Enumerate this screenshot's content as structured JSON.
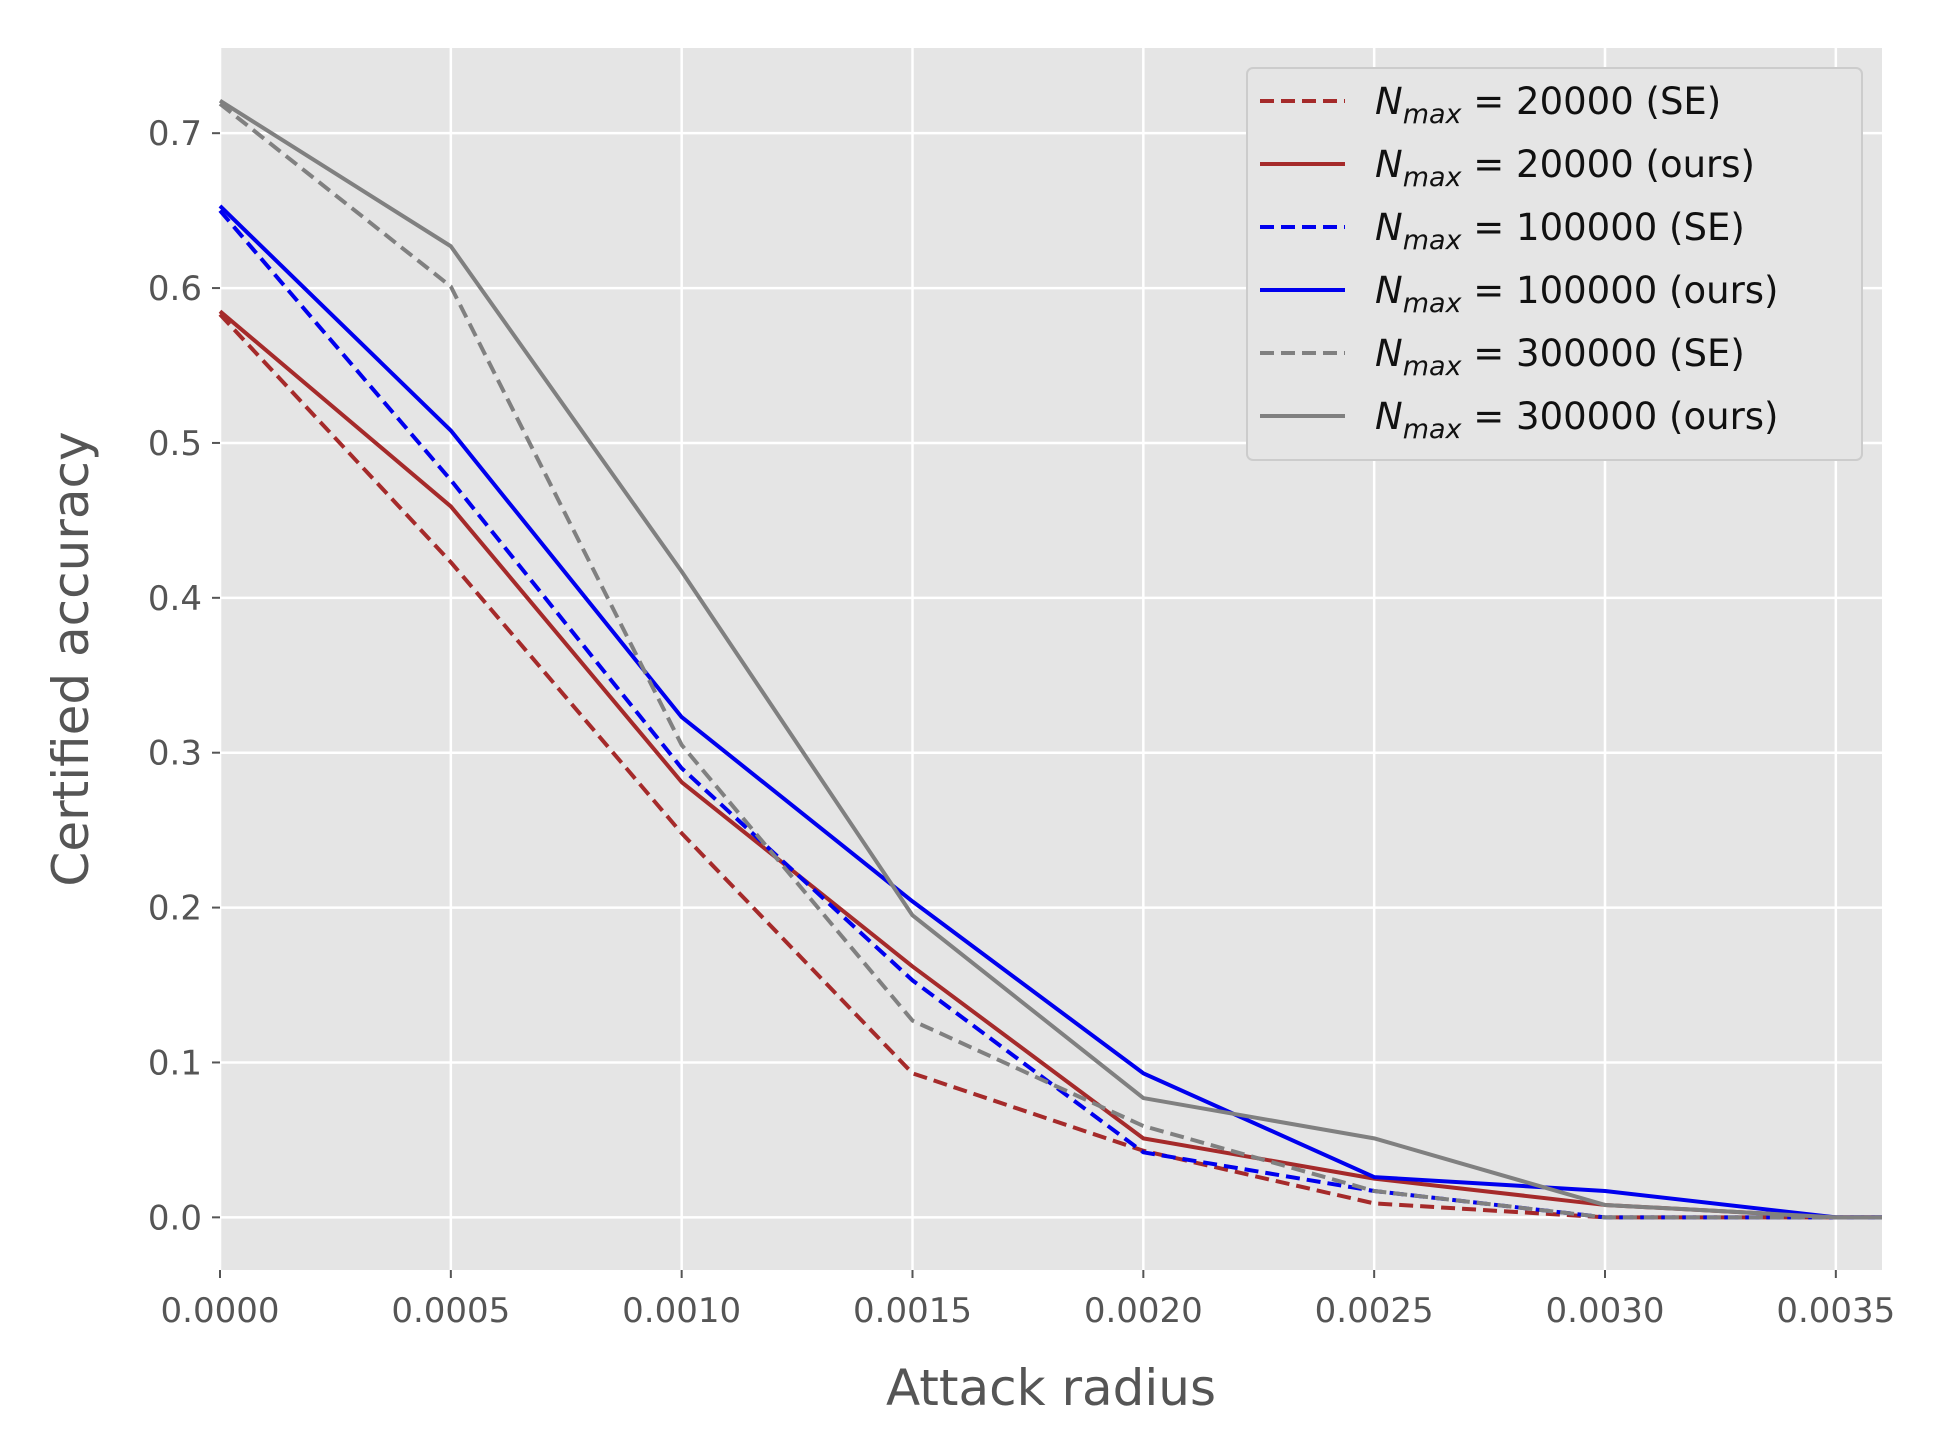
{
  "chart_data": {
    "type": "line",
    "xlabel": "Attack radius",
    "ylabel": "Certified accuracy",
    "xlim": [
      0.0,
      0.0036
    ],
    "ylim": [
      -0.034,
      0.755
    ],
    "grid": true,
    "legend_position": "top-right",
    "x_ticks": [
      "0.0000",
      "0.0005",
      "0.0010",
      "0.0015",
      "0.0020",
      "0.0025",
      "0.0030",
      "0.0035"
    ],
    "y_ticks": [
      "0.0",
      "0.1",
      "0.2",
      "0.3",
      "0.4",
      "0.5",
      "0.6",
      "0.7"
    ],
    "x": [
      0.0,
      0.0005,
      0.001,
      0.0015,
      0.002,
      0.0025,
      0.003,
      0.0035,
      0.0036
    ],
    "series": [
      {
        "name_main": "N",
        "name_sub": "max",
        "name_rest": " = 20000 (SE)",
        "color": "#a52a2a",
        "style": "dashed",
        "values": [
          0.583,
          0.423,
          0.248,
          0.093,
          0.043,
          0.009,
          0.0,
          0.0,
          0.0
        ]
      },
      {
        "name_main": "N",
        "name_sub": "max",
        "name_rest": " = 20000 (ours)",
        "color": "#a52a2a",
        "style": "solid",
        "values": [
          0.585,
          0.459,
          0.281,
          0.162,
          0.051,
          0.025,
          0.008,
          0.0,
          0.0
        ]
      },
      {
        "name_main": "N",
        "name_sub": "max",
        "name_rest": " = 100000 (SE)",
        "color": "#0000ee",
        "style": "dashed",
        "values": [
          0.65,
          0.476,
          0.29,
          0.153,
          0.042,
          0.017,
          0.0,
          0.0,
          0.0
        ]
      },
      {
        "name_main": "N",
        "name_sub": "max",
        "name_rest": " = 100000 (ours)",
        "color": "#0000ee",
        "style": "solid",
        "values": [
          0.653,
          0.508,
          0.323,
          0.204,
          0.093,
          0.026,
          0.017,
          0.0,
          0.0
        ]
      },
      {
        "name_main": "N",
        "name_sub": "max",
        "name_rest": " = 300000 (SE)",
        "color": "#808080",
        "style": "dashed",
        "values": [
          0.719,
          0.601,
          0.305,
          0.127,
          0.059,
          0.017,
          0.0,
          0.0,
          0.0
        ]
      },
      {
        "name_main": "N",
        "name_sub": "max",
        "name_rest": " = 300000 (ours)",
        "color": "#808080",
        "style": "solid",
        "values": [
          0.721,
          0.627,
          0.417,
          0.195,
          0.077,
          0.051,
          0.008,
          0.0,
          0.0
        ]
      }
    ]
  }
}
